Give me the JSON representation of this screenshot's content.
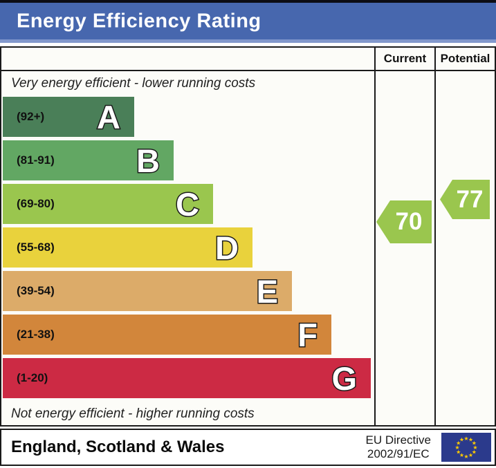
{
  "title": "Energy Efficiency Rating",
  "table": {
    "current_header": "Current",
    "potential_header": "Potential"
  },
  "notes": {
    "top": "Very energy efficient - lower running costs",
    "bottom": "Not energy efficient - higher running costs"
  },
  "chart_data": {
    "type": "bar",
    "title": "Energy Efficiency Rating",
    "bands": [
      {
        "letter": "A",
        "range": "(92+)",
        "min": 92,
        "max": 100,
        "color": "#4a7f58"
      },
      {
        "letter": "B",
        "range": "(81-91)",
        "min": 81,
        "max": 91,
        "color": "#62a763"
      },
      {
        "letter": "C",
        "range": "(69-80)",
        "min": 69,
        "max": 80,
        "color": "#9ac64e"
      },
      {
        "letter": "D",
        "range": "(55-68)",
        "min": 55,
        "max": 68,
        "color": "#e9d23c"
      },
      {
        "letter": "E",
        "range": "(39-54)",
        "min": 39,
        "max": 54,
        "color": "#dcab69"
      },
      {
        "letter": "F",
        "range": "(21-38)",
        "min": 21,
        "max": 38,
        "color": "#d2863b"
      },
      {
        "letter": "G",
        "range": "(1-20)",
        "min": 1,
        "max": 20,
        "color": "#cc2a44"
      }
    ],
    "current": {
      "value": 70,
      "band": "C",
      "color": "#9ac64e"
    },
    "potential": {
      "value": 77,
      "band": "C",
      "color": "#9ac64e"
    },
    "grid": false,
    "legend_position": "right-columns"
  },
  "footer": {
    "region": "England, Scotland & Wales",
    "directive": [
      "EU Directive",
      "2002/91/EC"
    ]
  },
  "colors": {
    "banner_blue": "#4767ae",
    "banner_edge": "#8298cc",
    "border": "#1a1a1a",
    "flag_blue": "#2b3a8c",
    "star_yellow": "#ffcc00"
  }
}
